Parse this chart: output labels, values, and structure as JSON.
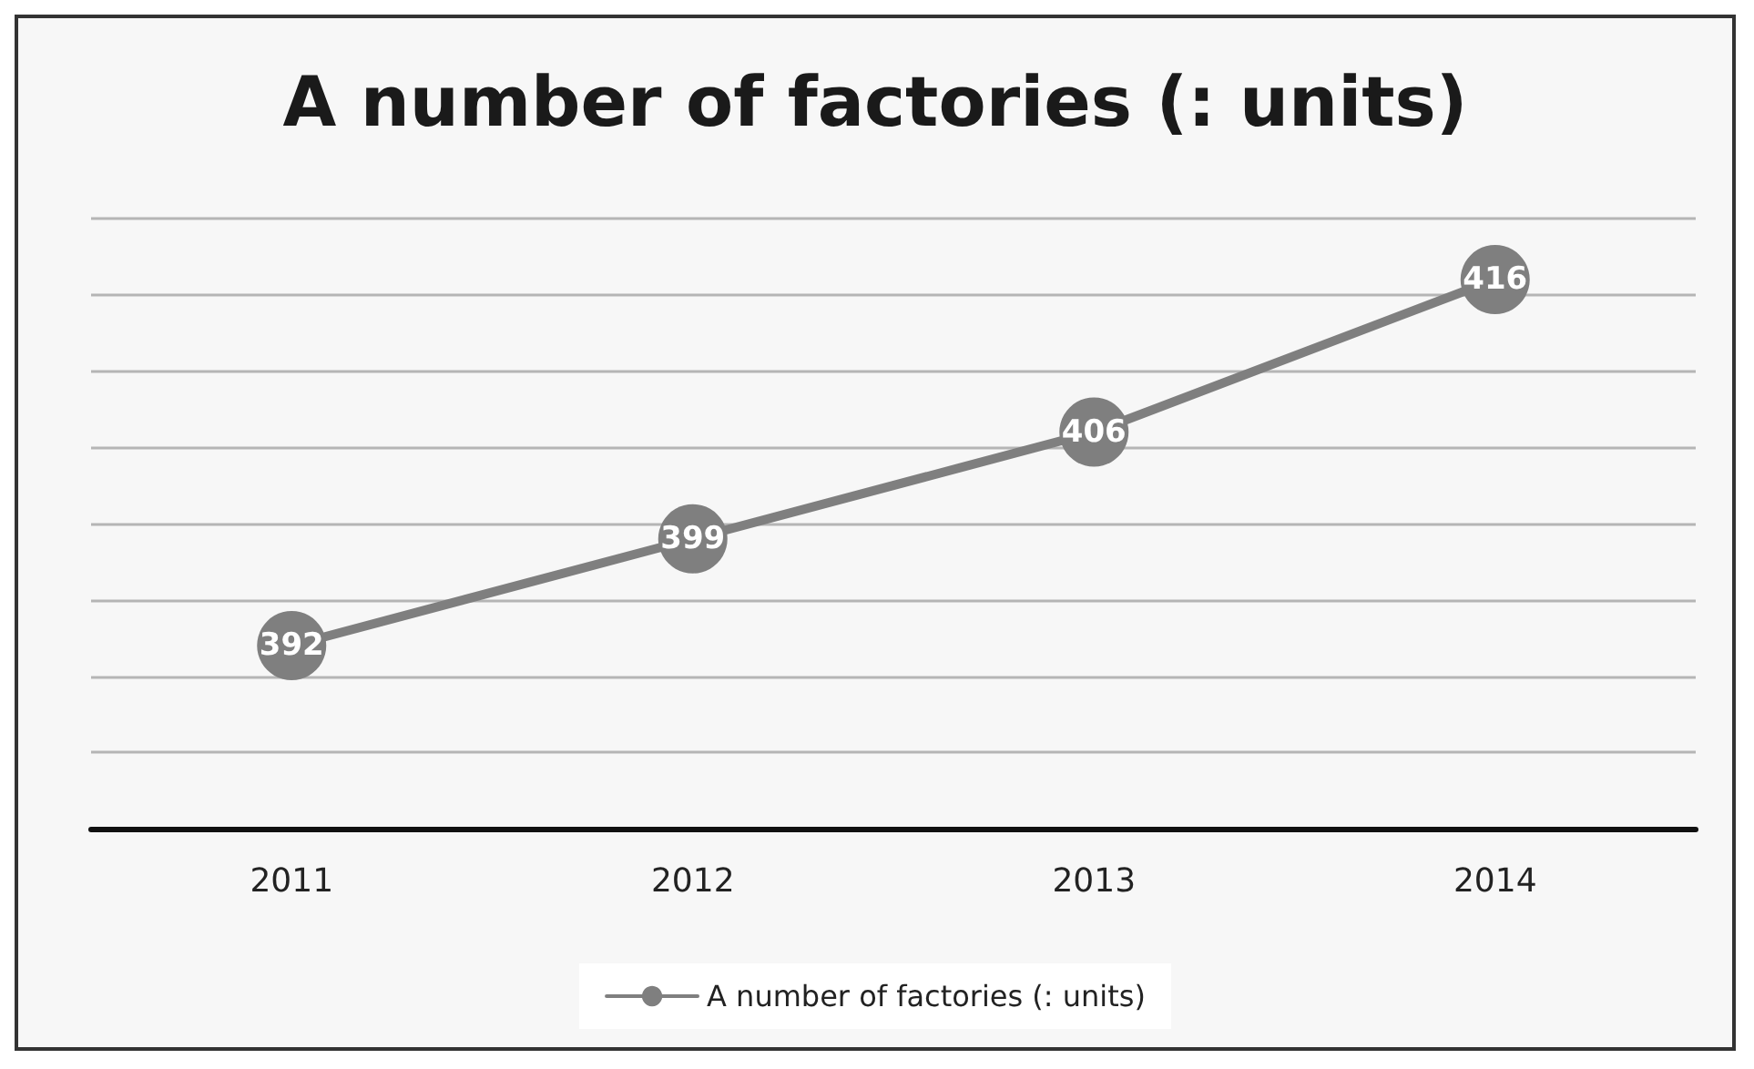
{
  "chart_data": {
    "type": "line",
    "title": "A number of factories (: units)",
    "categories": [
      "2011",
      "2012",
      "2013",
      "2014"
    ],
    "series": [
      {
        "name": "A number of factories (: units)",
        "color": "#7f7f7f",
        "values": [
          392,
          399,
          406,
          416
        ]
      }
    ],
    "ylim": [
      380,
      420
    ],
    "yticks": [
      {
        "value": 380,
        "label": null
      },
      {
        "value": 385,
        "label": null
      },
      {
        "value": 390,
        "label": null
      },
      {
        "value": 395,
        "label": null
      },
      {
        "value": 400,
        "label": null
      },
      {
        "value": 405,
        "label": null
      },
      {
        "value": 410,
        "label": null
      },
      {
        "value": 415,
        "label": null
      },
      {
        "value": 420,
        "label": null
      }
    ],
    "tick_labels": "x",
    "grid": "y",
    "legend": "bottom",
    "marker": "circle",
    "line_style": "solid",
    "data_labels": true
  }
}
